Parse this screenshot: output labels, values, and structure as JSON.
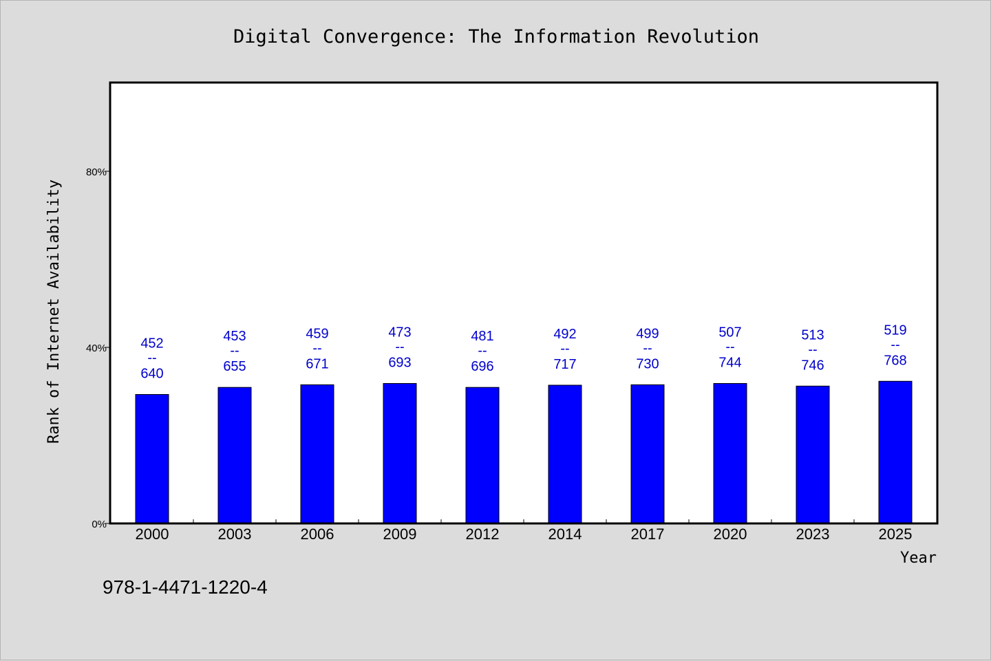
{
  "chart_data": {
    "type": "bar",
    "title": "Digital Convergence: The Information Revolution",
    "xlabel": "Year",
    "ylabel": "Rank of Internet Availability",
    "categories": [
      "2000",
      "2003",
      "2006",
      "2009",
      "2012",
      "2014",
      "2017",
      "2020",
      "2023",
      "2025"
    ],
    "values": [
      29.3,
      30.9,
      31.5,
      31.8,
      30.9,
      31.4,
      31.5,
      31.8,
      31.2,
      32.3
    ],
    "label_top": [
      "452",
      "453",
      "459",
      "473",
      "481",
      "492",
      "499",
      "507",
      "513",
      "519"
    ],
    "label_sep": "--",
    "label_bottom": [
      "640",
      "655",
      "671",
      "693",
      "696",
      "717",
      "730",
      "744",
      "746",
      "768"
    ],
    "yticks": [
      0,
      40,
      80
    ],
    "ytick_labels": [
      "0%",
      "40%",
      "80%"
    ],
    "ylim": [
      0,
      100
    ],
    "grid": false,
    "legend": "none",
    "colors": {
      "bar": "#0000ff",
      "bar_edge": "#000000",
      "label": "#0000cc",
      "plot_bg": "#ffffff",
      "page_bg": "#dcdcdc"
    }
  },
  "footnote": "978-1-4471-1220-4"
}
